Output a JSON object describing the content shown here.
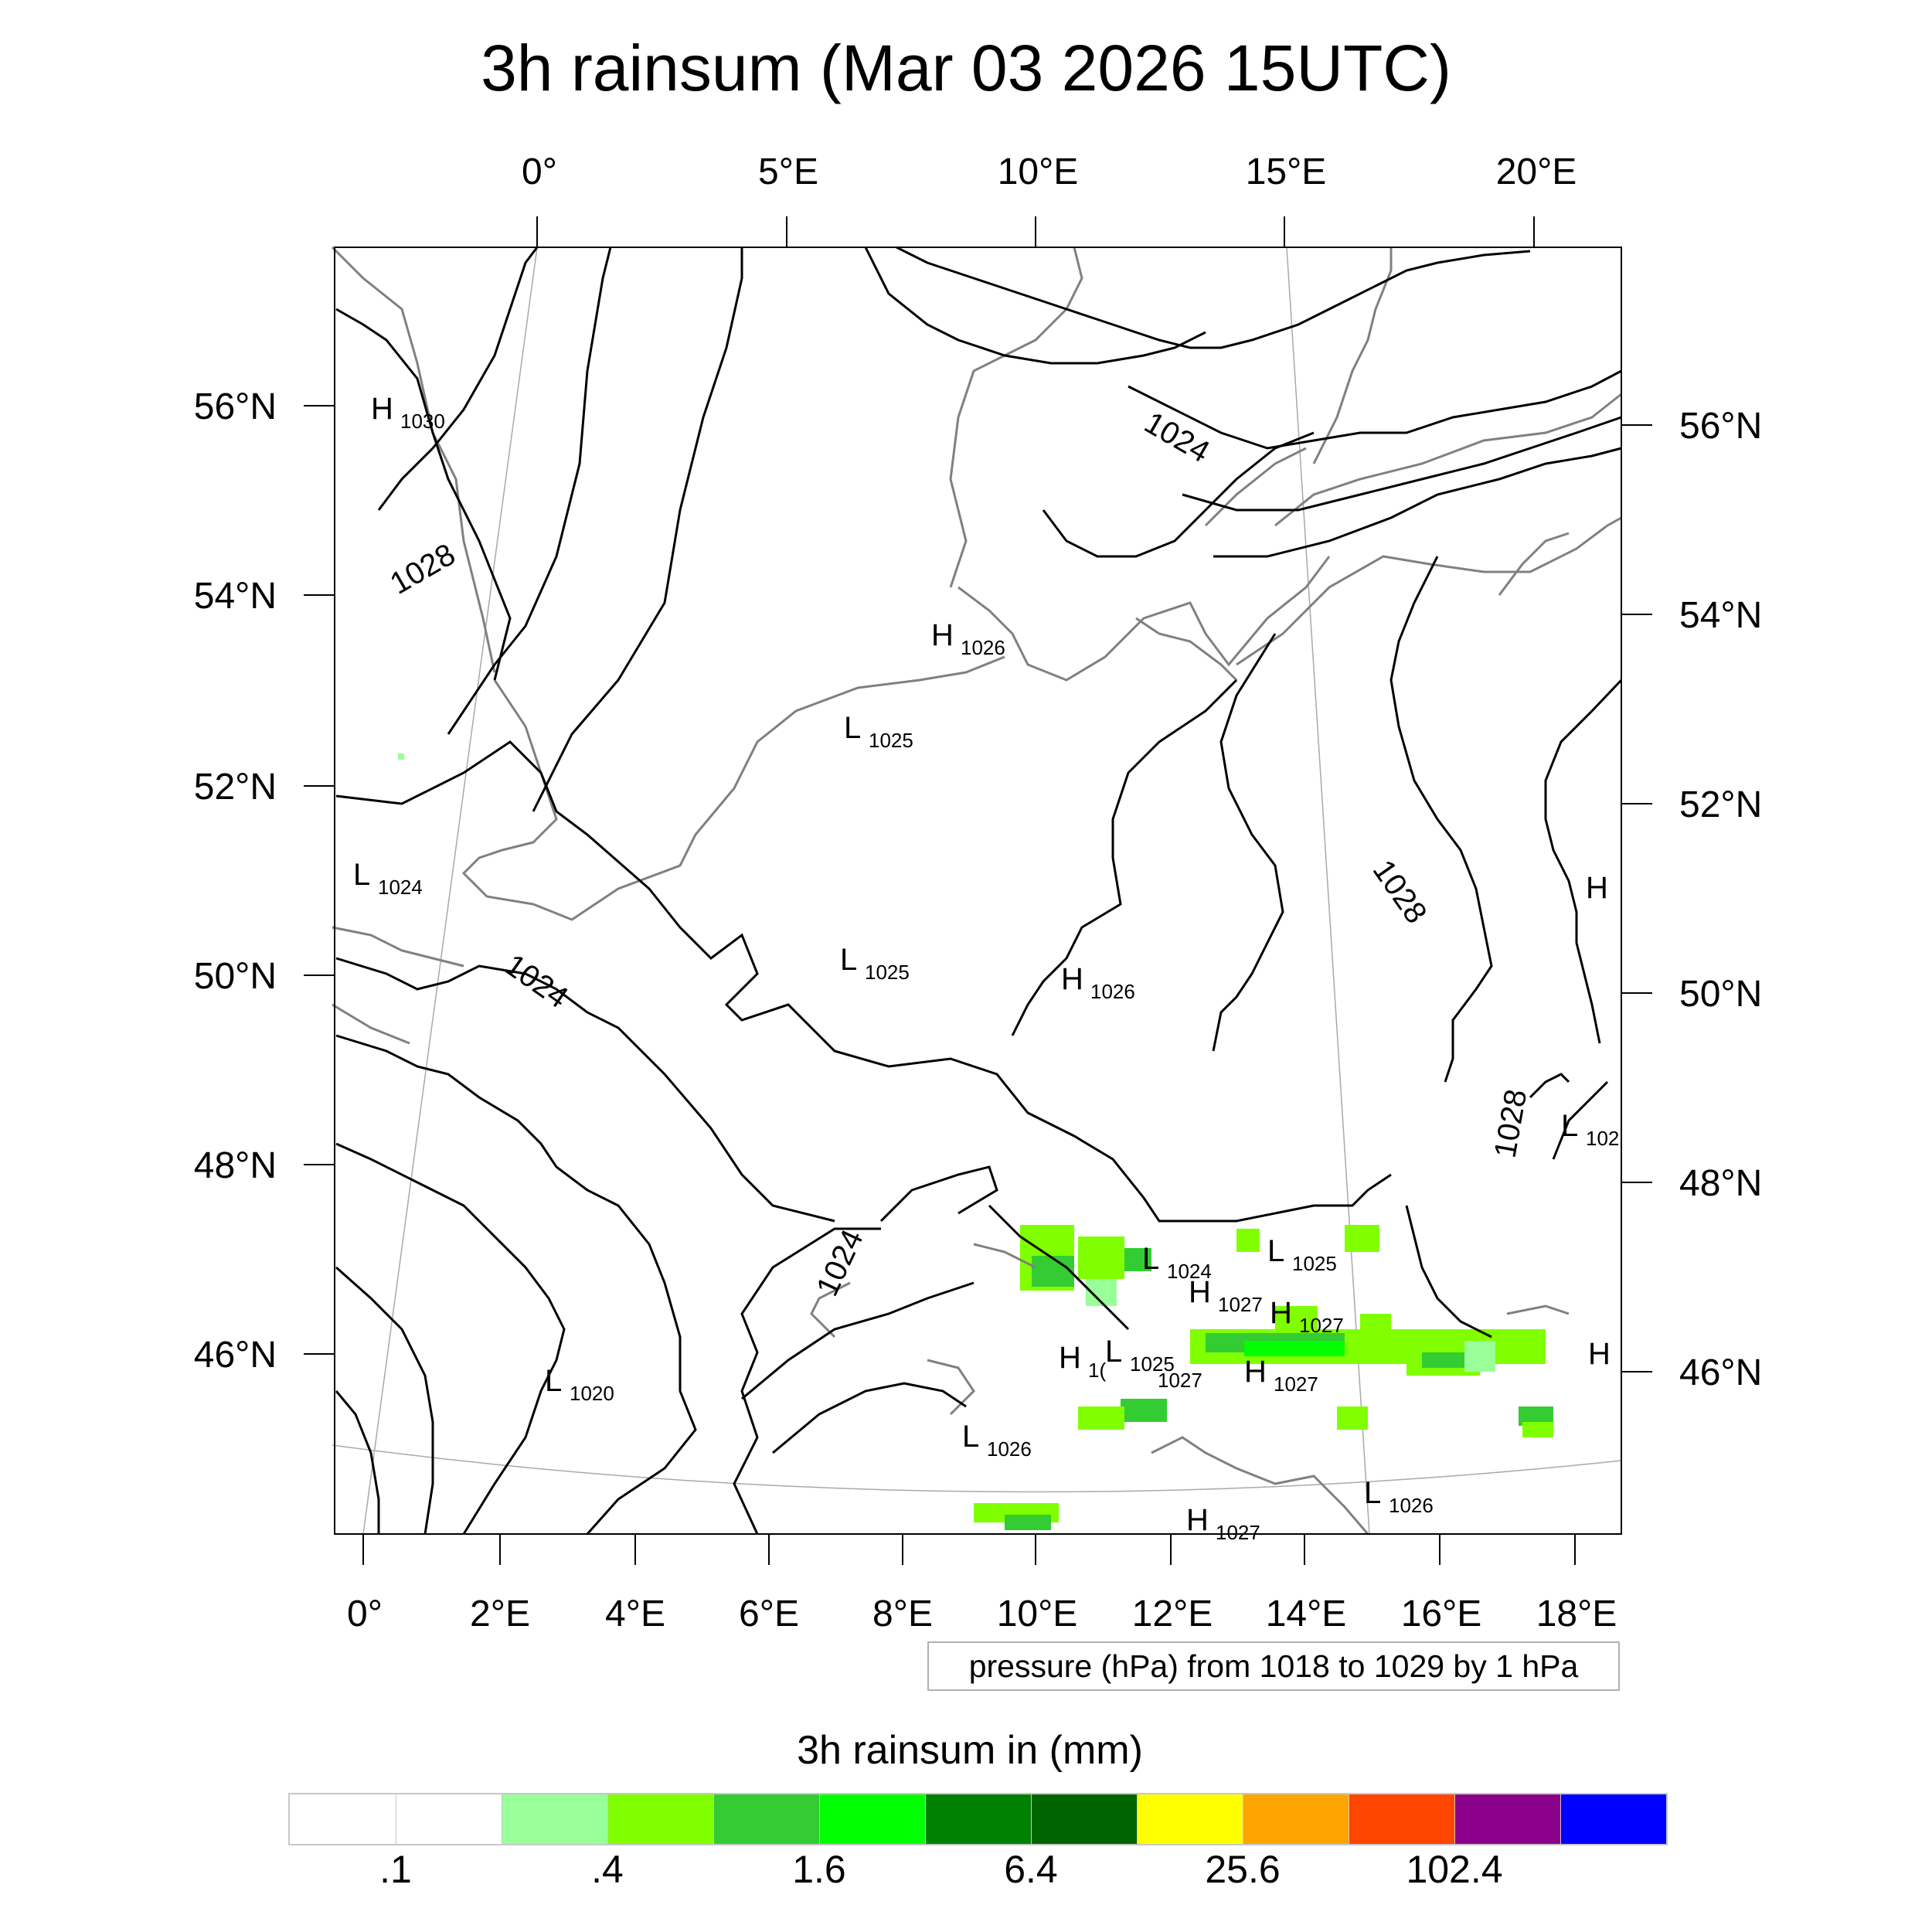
{
  "title": "3h rainsum (Mar 03 2026 15UTC)",
  "map": {
    "top_lon_labels": [
      "0°",
      "5°E",
      "10°E",
      "15°E",
      "20°E"
    ],
    "bottom_lon_labels": [
      "0°",
      "2°E",
      "4°E",
      "6°E",
      "8°E",
      "10°E",
      "12°E",
      "14°E",
      "16°E",
      "18°E"
    ],
    "left_lat_labels": [
      "56°N",
      "54°N",
      "52°N",
      "50°N",
      "48°N",
      "46°N"
    ],
    "right_lat_labels": [
      "56°N",
      "54°N",
      "52°N",
      "50°N",
      "48°N",
      "46°N"
    ],
    "isobar_labels": [
      "1028",
      "1024",
      "1024",
      "1024",
      "1028",
      "1028"
    ],
    "pressure_centers": [
      {
        "type": "H",
        "value": "1030"
      },
      {
        "type": "H",
        "value": "1026"
      },
      {
        "type": "L",
        "value": "1025"
      },
      {
        "type": "L",
        "value": "1024"
      },
      {
        "type": "L",
        "value": "1025"
      },
      {
        "type": "H",
        "value": "1026"
      },
      {
        "type": "L",
        "value": "1020"
      },
      {
        "type": "L",
        "value": "1024"
      },
      {
        "type": "L",
        "value": "1025"
      },
      {
        "type": "H",
        "value": "1027"
      },
      {
        "type": "H",
        "value": "1027"
      },
      {
        "type": "H",
        "value": "1("
      },
      {
        "type": "L",
        "value": "1025"
      },
      {
        "type": "H",
        "value": "1027"
      },
      {
        "type": "L",
        "value": "1026"
      },
      {
        "type": "L",
        "value": "1026"
      },
      {
        "type": "H",
        "value": "1027"
      },
      {
        "type": "H",
        "value": ""
      },
      {
        "type": "L",
        "value": "102"
      },
      {
        "type": "H",
        "value": ""
      },
      {
        "type": "",
        "value": "1027"
      }
    ],
    "colors": {
      "isobar": "#000000",
      "coastline": "#808080",
      "grid": "#a0a0a0",
      "rain_light": "#99ff99",
      "rain_mid": "#80ff00",
      "rain_strong": "#33cc33",
      "rain_bright": "#00ff00"
    }
  },
  "info_box": "pressure (hPa) from 1018 to 1029 by 1 hPa",
  "legend": {
    "title": "3h rainsum in (mm)",
    "colors": [
      "#ffffff",
      "#ffffff",
      "#99ff99",
      "#80ff00",
      "#33cc33",
      "#00ff00",
      "#008000",
      "#006400",
      "#ffff00",
      "#ffa500",
      "#ff4500",
      "#8b008b",
      "#0000ff"
    ],
    "labels": [
      ".1",
      ".4",
      "1.6",
      "6.4",
      "25.6",
      "102.4"
    ]
  }
}
